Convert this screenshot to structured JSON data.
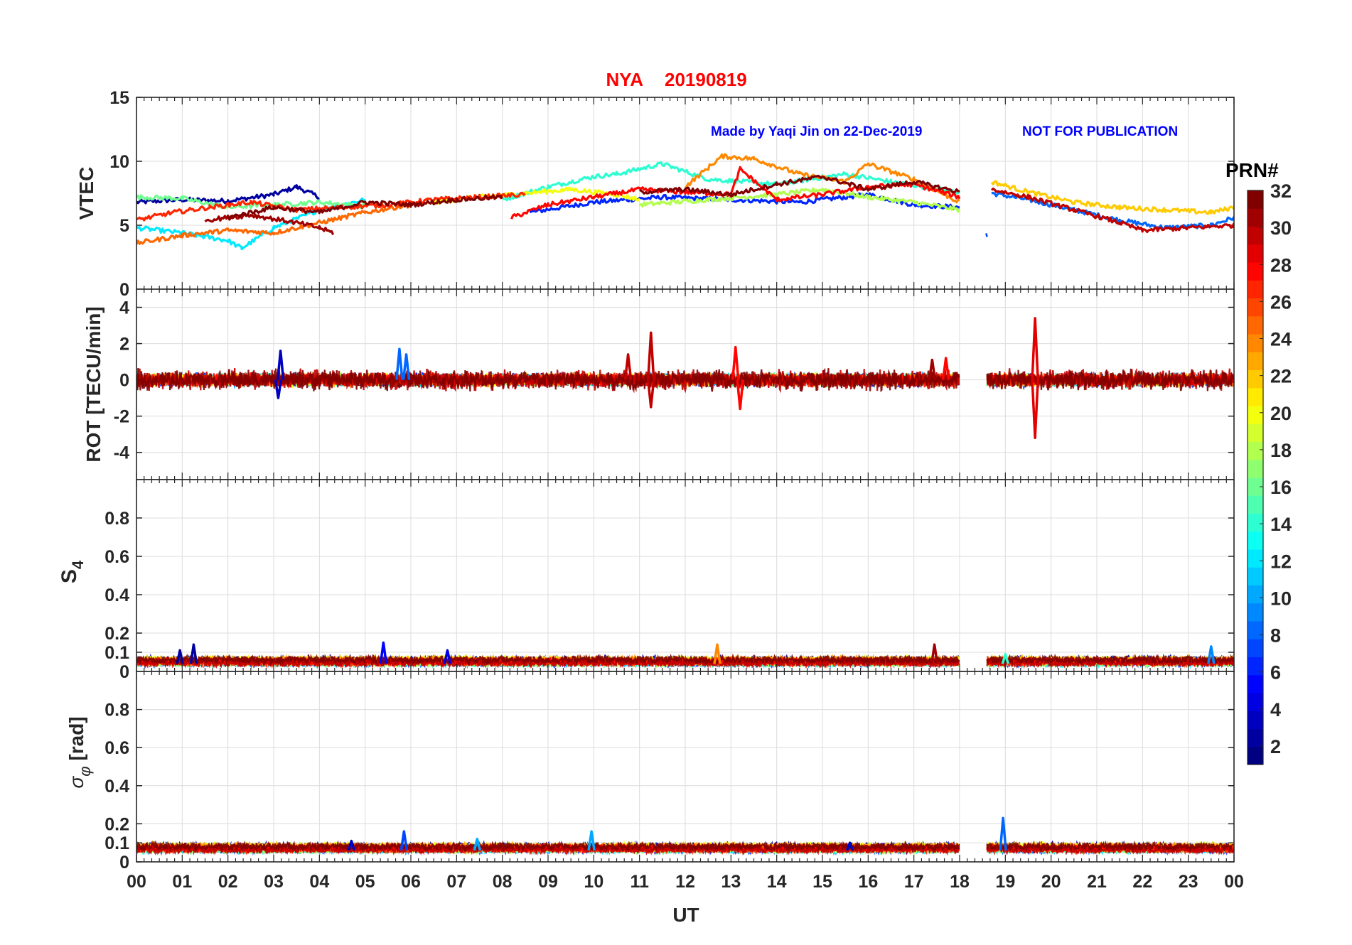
{
  "title": {
    "station": "NYA",
    "date": "20190819",
    "color": "#ff0000"
  },
  "credit": {
    "text": "Made by Yaqi Jin on 22-Dec-2019",
    "notice": "NOT FOR PUBLICATION",
    "color": "#0000ff"
  },
  "xaxis": {
    "label": "UT",
    "ticks": [
      "00",
      "01",
      "02",
      "03",
      "04",
      "05",
      "06",
      "07",
      "08",
      "09",
      "10",
      "11",
      "12",
      "13",
      "14",
      "15",
      "16",
      "17",
      "18",
      "19",
      "20",
      "21",
      "22",
      "23",
      "00"
    ],
    "range_hours": [
      0,
      24
    ]
  },
  "colorbar": {
    "label": "PRN#",
    "range": [
      1,
      32
    ],
    "ticks": [
      "2",
      "4",
      "6",
      "8",
      "10",
      "12",
      "14",
      "16",
      "18",
      "20",
      "22",
      "24",
      "26",
      "28",
      "30",
      "32"
    ],
    "colormap": "jet"
  },
  "chart_data": [
    {
      "type": "line",
      "panel": "vtec",
      "ylabel": "VTEC",
      "ylim": [
        0,
        15
      ],
      "yticks": [
        "0",
        "5",
        "10",
        "15"
      ],
      "grid": true,
      "data_gap_ut": [
        18.0,
        18.6
      ],
      "series": [
        {
          "prn": 2,
          "x": [
            0.0,
            1.0,
            2.0,
            3.0,
            3.5,
            4.0
          ],
          "y": [
            6.8,
            7.0,
            6.9,
            7.4,
            8.0,
            7.2
          ]
        },
        {
          "prn": 6,
          "x": [
            8.6,
            10.0,
            11.5,
            13.0,
            14.5,
            16.0,
            17.0,
            18.0
          ],
          "y": [
            6.0,
            6.8,
            7.2,
            7.0,
            6.8,
            7.4,
            6.6,
            6.4
          ]
        },
        {
          "prn": 8,
          "x": [
            18.7,
            19.5,
            20.5,
            21.5,
            22.5,
            23.5,
            24.0
          ],
          "y": [
            7.5,
            7.0,
            6.2,
            5.4,
            4.8,
            5.0,
            5.6
          ]
        },
        {
          "prn": 12,
          "x": [
            0.0,
            1.0,
            2.0,
            2.3,
            3.0,
            4.0,
            5.0
          ],
          "y": [
            4.8,
            4.4,
            3.8,
            3.2,
            4.8,
            6.2,
            7.0
          ]
        },
        {
          "prn": 14,
          "x": [
            8.0,
            9.0,
            10.0,
            10.5,
            11.5,
            12.5,
            14.0,
            15.5,
            16.5,
            18.0
          ],
          "y": [
            7.0,
            8.0,
            8.8,
            9.0,
            9.8,
            8.6,
            8.2,
            9.0,
            8.4,
            7.6
          ]
        },
        {
          "prn": 16,
          "x": [
            0.0,
            1.0,
            2.0,
            3.0,
            4.0,
            5.0
          ],
          "y": [
            7.2,
            7.1,
            6.4,
            6.6,
            6.8,
            6.5
          ]
        },
        {
          "prn": 18,
          "x": [
            11.0,
            12.5,
            14.0,
            15.0,
            16.0,
            17.0,
            18.0
          ],
          "y": [
            6.6,
            7.0,
            7.4,
            7.8,
            7.2,
            6.8,
            6.2
          ]
        },
        {
          "prn": 20,
          "x": [
            6.5,
            7.5,
            8.5,
            9.5,
            10.5,
            11.0
          ],
          "y": [
            6.8,
            7.2,
            7.5,
            7.8,
            7.4,
            7.0
          ]
        },
        {
          "prn": 22,
          "x": [
            18.7,
            19.5,
            20.5,
            21.5,
            22.5,
            23.5,
            24.0
          ],
          "y": [
            8.4,
            7.6,
            6.8,
            6.4,
            6.2,
            6.0,
            6.4
          ]
        },
        {
          "prn": 24,
          "x": [
            12.0,
            12.8,
            13.5,
            14.5,
            15.5,
            16.0,
            17.0,
            18.0
          ],
          "y": [
            8.0,
            10.4,
            10.2,
            9.0,
            8.4,
            9.8,
            8.6,
            6.8
          ]
        },
        {
          "prn": 25,
          "x": [
            0.0,
            1.0,
            2.0,
            3.0,
            4.0,
            5.0,
            6.0
          ],
          "y": [
            3.6,
            4.2,
            4.6,
            4.4,
            5.2,
            6.0,
            6.6
          ]
        },
        {
          "prn": 27,
          "x": [
            0.0,
            0.8,
            1.6,
            2.5,
            3.5,
            4.5,
            5.5,
            6.5,
            7.5,
            8.5
          ],
          "y": [
            5.4,
            6.0,
            6.4,
            6.8,
            6.2,
            6.4,
            6.6,
            7.0,
            7.2,
            7.4
          ]
        },
        {
          "prn": 28,
          "x": [
            8.2,
            9.0,
            10.0,
            11.0,
            12.0,
            13.0,
            13.2,
            14.0,
            15.0,
            16.0,
            17.0,
            18.0
          ],
          "y": [
            5.6,
            6.6,
            7.2,
            7.8,
            7.6,
            7.4,
            9.4,
            7.0,
            7.4,
            8.0,
            8.2,
            7.2
          ]
        },
        {
          "prn": 30,
          "x": [
            18.7,
            19.5,
            20.5,
            21.5,
            22.0,
            23.0,
            24.0
          ],
          "y": [
            7.8,
            7.2,
            6.2,
            5.2,
            4.6,
            4.8,
            5.0
          ]
        },
        {
          "prn": 31,
          "x": [
            1.5,
            2.5,
            3.5,
            4.0,
            4.3
          ],
          "y": [
            5.4,
            5.8,
            5.2,
            4.8,
            4.4
          ]
        },
        {
          "prn": 32,
          "x": [
            2.0,
            3.0,
            4.0,
            5.0,
            6.0,
            7.0,
            8.0
          ],
          "y": [
            5.6,
            6.4,
            6.0,
            6.8,
            6.6,
            7.0,
            7.2
          ]
        },
        {
          "prn": 32,
          "x": [
            11.0,
            12.0,
            13.0,
            14.0,
            15.0,
            16.0,
            17.0,
            18.0
          ],
          "y": [
            7.6,
            7.8,
            7.4,
            8.2,
            8.8,
            7.8,
            8.4,
            7.6
          ]
        }
      ]
    },
    {
      "type": "line",
      "panel": "rot",
      "ylabel": "ROT [TECU/min]",
      "ylim": [
        -5.5,
        5.0
      ],
      "yticks": [
        "-4",
        "-2",
        "0",
        "2",
        "4"
      ],
      "grid": true,
      "data_gap_ut": [
        18.0,
        18.6
      ],
      "baseline": 0,
      "typical_amplitude": 0.4,
      "spikes": [
        {
          "ut": 3.15,
          "value": 1.6,
          "prn": 3
        },
        {
          "ut": 3.1,
          "value": -1.0,
          "prn": 3
        },
        {
          "ut": 5.75,
          "value": 1.7,
          "prn": 8
        },
        {
          "ut": 5.9,
          "value": 1.4,
          "prn": 8
        },
        {
          "ut": 11.25,
          "value": 2.6,
          "prn": 30
        },
        {
          "ut": 11.25,
          "value": -1.5,
          "prn": 30
        },
        {
          "ut": 10.75,
          "value": 1.4,
          "prn": 30
        },
        {
          "ut": 13.1,
          "value": 1.8,
          "prn": 28
        },
        {
          "ut": 13.2,
          "value": -1.6,
          "prn": 28
        },
        {
          "ut": 19.65,
          "value": 3.4,
          "prn": 29
        },
        {
          "ut": 19.65,
          "value": -3.2,
          "prn": 29
        },
        {
          "ut": 17.4,
          "value": 1.1,
          "prn": 31
        },
        {
          "ut": 17.7,
          "value": 1.2,
          "prn": 28
        }
      ]
    },
    {
      "type": "line",
      "panel": "s4",
      "ylabel": "S4",
      "ylim": [
        0,
        1.0
      ],
      "yticks": [
        "0",
        "0.1",
        "0.2",
        "0.4",
        "0.6",
        "0.8"
      ],
      "grid": true,
      "data_gap_ut": [
        18.0,
        18.6
      ],
      "baseline": 0.04,
      "spikes": [
        {
          "ut": 0.95,
          "value": 0.11,
          "prn": 2
        },
        {
          "ut": 1.25,
          "value": 0.14,
          "prn": 2
        },
        {
          "ut": 5.4,
          "value": 0.15,
          "prn": 5
        },
        {
          "ut": 6.8,
          "value": 0.11,
          "prn": 4
        },
        {
          "ut": 12.7,
          "value": 0.14,
          "prn": 24
        },
        {
          "ut": 17.45,
          "value": 0.14,
          "prn": 31
        },
        {
          "ut": 23.5,
          "value": 0.13,
          "prn": 9
        },
        {
          "ut": 19.0,
          "value": 0.09,
          "prn": 14
        }
      ]
    },
    {
      "type": "line",
      "panel": "sigma_phi",
      "ylabel": "σφ [rad]",
      "ylim": [
        0,
        1.0
      ],
      "yticks": [
        "0",
        "0.1",
        "0.2",
        "0.4",
        "0.6",
        "0.8"
      ],
      "grid": true,
      "data_gap_ut": [
        18.0,
        18.6
      ],
      "baseline": 0.06,
      "spikes": [
        {
          "ut": 5.85,
          "value": 0.16,
          "prn": 7
        },
        {
          "ut": 7.45,
          "value": 0.12,
          "prn": 10
        },
        {
          "ut": 9.95,
          "value": 0.16,
          "prn": 10
        },
        {
          "ut": 18.95,
          "value": 0.23,
          "prn": 8
        },
        {
          "ut": 15.6,
          "value": 0.1,
          "prn": 3
        },
        {
          "ut": 4.7,
          "value": 0.11,
          "prn": 3
        }
      ]
    }
  ]
}
